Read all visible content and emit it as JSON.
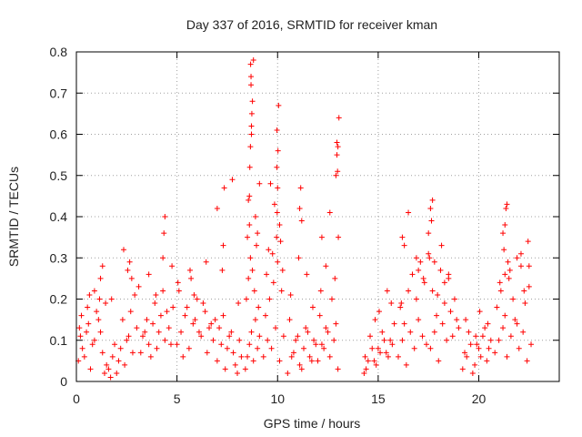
{
  "chart_data": {
    "type": "scatter",
    "title": "Day 337 of 2016, SRMTID for receiver kman",
    "xlabel": "GPS time / hours",
    "ylabel": "SRMTID / TECUs",
    "xlim": [
      0,
      24
    ],
    "ylim": [
      0,
      0.8
    ],
    "xticks": [
      0,
      5,
      10,
      15,
      20
    ],
    "xtick_labels": [
      "0",
      "5",
      "10",
      "15",
      "20"
    ],
    "yticks": [
      0,
      0.1,
      0.2,
      0.3,
      0.4,
      0.5,
      0.6,
      0.7,
      0.8
    ],
    "ytick_labels": [
      "0",
      "0.1",
      "0.2",
      "0.3",
      "0.4",
      "0.5",
      "0.6",
      "0.7",
      "0.8"
    ],
    "grid": true,
    "marker": "+",
    "marker_color": "#ff0000",
    "series": [
      {
        "name": "SRMTID",
        "x": [
          0.1,
          0.3,
          0.5,
          0.7,
          0.9,
          1.1,
          1.3,
          1.5,
          0.2,
          0.4,
          0.6,
          0.8,
          1.0,
          1.2,
          1.4,
          0.55,
          1.15,
          1.2,
          0.25,
          0.9,
          1.3,
          0.65,
          0.15,
          1.45,
          1.6,
          1.8,
          2.0,
          2.2,
          2.4,
          2.6,
          2.8,
          3.0,
          1.7,
          1.9,
          2.1,
          2.3,
          2.5,
          2.7,
          2.9,
          2.55,
          2.75,
          2.65,
          2.35,
          1.75,
          3.2,
          3.4,
          3.6,
          3.8,
          4.0,
          4.2,
          4.4,
          4.6,
          4.8,
          3.3,
          3.5,
          3.7,
          3.9,
          4.1,
          4.3,
          4.5,
          4.7,
          4.3,
          4.35,
          4.4,
          3.6,
          3.1,
          4.75,
          3.95,
          5.0,
          5.2,
          5.4,
          5.6,
          5.8,
          6.0,
          6.2,
          6.4,
          6.6,
          6.8,
          5.1,
          5.3,
          5.5,
          5.7,
          5.9,
          6.1,
          6.3,
          6.5,
          6.7,
          5.05,
          5.65,
          5.85,
          6.45,
          7.0,
          7.2,
          7.4,
          7.6,
          7.8,
          8.0,
          8.2,
          7.1,
          7.3,
          7.5,
          7.7,
          7.9,
          8.1,
          7.25,
          7.3,
          6.9,
          7.0,
          7.35,
          7.75,
          8.05,
          8.4,
          8.5,
          8.6,
          8.7,
          8.8,
          8.9,
          9.0,
          9.1,
          8.45,
          8.55,
          8.65,
          8.75,
          8.85,
          8.95,
          9.05,
          8.6,
          8.6,
          8.62,
          8.65,
          8.7,
          8.72,
          8.75,
          8.8,
          8.68,
          8.66,
          8.7,
          8.68,
          9.1,
          8.9,
          8.5,
          8.55,
          9.0,
          9.3,
          9.5,
          9.7,
          9.9,
          10.1,
          10.3,
          9.4,
          9.6,
          9.8,
          10.0,
          10.2,
          9.95,
          9.98,
          10.0,
          9.96,
          10.02,
          9.97,
          10.05,
          9.85,
          9.75,
          10.1,
          10.25,
          9.55,
          9.45,
          10.15,
          9.65,
          10.5,
          10.7,
          10.9,
          11.1,
          11.3,
          11.5,
          11.7,
          11.9,
          10.6,
          10.8,
          11.0,
          11.2,
          11.4,
          11.6,
          11.8,
          11.1,
          11.15,
          11.2,
          11.05,
          10.65,
          11.45,
          11.75,
          12.0,
          12.2,
          12.4,
          12.6,
          12.8,
          13.0,
          12.1,
          12.3,
          12.5,
          12.7,
          12.9,
          12.9,
          12.95,
          13.0,
          12.95,
          13.05,
          12.98,
          13.02,
          12.85,
          12.2,
          12.6,
          12.15,
          12.4,
          14.3,
          14.5,
          14.7,
          14.9,
          15.1,
          15.3,
          15.5,
          15.7,
          14.4,
          14.6,
          14.8,
          15.0,
          15.2,
          15.4,
          15.6,
          15.8,
          14.35,
          15.05,
          15.45,
          15.65,
          14.85,
          16.0,
          16.2,
          16.4,
          16.6,
          16.8,
          17.0,
          17.2,
          17.4,
          16.1,
          16.3,
          16.5,
          16.7,
          16.9,
          17.1,
          17.3,
          17.5,
          16.2,
          16.3,
          16.5,
          16.9,
          17.0,
          17.25,
          16.15,
          17.6,
          17.8,
          18.0,
          18.2,
          18.4,
          18.6,
          18.8,
          19.0,
          17.7,
          17.9,
          18.1,
          18.3,
          18.5,
          18.7,
          18.9,
          17.5,
          17.6,
          17.7,
          17.65,
          17.8,
          17.55,
          18.15,
          18.5,
          18.3,
          17.95,
          19.2,
          19.4,
          19.6,
          19.8,
          20.0,
          20.2,
          20.4,
          20.6,
          19.3,
          19.5,
          19.7,
          19.9,
          20.1,
          20.3,
          20.5,
          19.35,
          20.05,
          20.45,
          19.85,
          20.8,
          21.0,
          21.2,
          21.4,
          21.6,
          21.8,
          22.0,
          22.2,
          22.4,
          22.6,
          20.9,
          21.1,
          21.3,
          21.5,
          21.7,
          21.9,
          22.1,
          22.3,
          22.5,
          21.25,
          21.3,
          21.35,
          21.4,
          21.2,
          21.45,
          21.3,
          21.05,
          22.1,
          22.45,
          22.5,
          21.55,
          22.25,
          21.9
        ],
        "y": [
          0.05,
          0.08,
          0.12,
          0.03,
          0.1,
          0.15,
          0.07,
          0.04,
          0.11,
          0.06,
          0.14,
          0.09,
          0.17,
          0.12,
          0.02,
          0.18,
          0.2,
          0.25,
          0.16,
          0.22,
          0.28,
          0.21,
          0.13,
          0.19,
          0.03,
          0.06,
          0.02,
          0.08,
          0.04,
          0.11,
          0.07,
          0.13,
          0.01,
          0.09,
          0.05,
          0.15,
          0.1,
          0.17,
          0.21,
          0.27,
          0.25,
          0.29,
          0.32,
          0.2,
          0.07,
          0.12,
          0.09,
          0.14,
          0.08,
          0.16,
          0.1,
          0.13,
          0.18,
          0.11,
          0.15,
          0.06,
          0.19,
          0.12,
          0.22,
          0.17,
          0.09,
          0.3,
          0.36,
          0.4,
          0.26,
          0.23,
          0.28,
          0.21,
          0.09,
          0.12,
          0.16,
          0.08,
          0.14,
          0.2,
          0.11,
          0.17,
          0.13,
          0.1,
          0.22,
          0.06,
          0.18,
          0.25,
          0.15,
          0.12,
          0.19,
          0.07,
          0.14,
          0.24,
          0.27,
          0.21,
          0.29,
          0.05,
          0.09,
          0.03,
          0.11,
          0.07,
          0.02,
          0.06,
          0.13,
          0.16,
          0.08,
          0.12,
          0.04,
          0.1,
          0.27,
          0.33,
          0.15,
          0.42,
          0.47,
          0.49,
          0.19,
          0.03,
          0.06,
          0.09,
          0.12,
          0.05,
          0.15,
          0.08,
          0.11,
          0.2,
          0.25,
          0.3,
          0.27,
          0.22,
          0.33,
          0.18,
          0.38,
          0.45,
          0.52,
          0.57,
          0.6,
          0.65,
          0.68,
          0.78,
          0.74,
          0.77,
          0.62,
          0.72,
          0.48,
          0.4,
          0.35,
          0.44,
          0.36,
          0.06,
          0.1,
          0.08,
          0.13,
          0.05,
          0.11,
          0.16,
          0.2,
          0.24,
          0.29,
          0.22,
          0.35,
          0.41,
          0.47,
          0.52,
          0.56,
          0.61,
          0.67,
          0.43,
          0.31,
          0.38,
          0.27,
          0.32,
          0.26,
          0.34,
          0.48,
          0.02,
          0.06,
          0.1,
          0.04,
          0.08,
          0.12,
          0.05,
          0.09,
          0.15,
          0.07,
          0.11,
          0.03,
          0.13,
          0.06,
          0.1,
          0.42,
          0.47,
          0.39,
          0.3,
          0.21,
          0.26,
          0.18,
          0.05,
          0.09,
          0.13,
          0.06,
          0.1,
          0.03,
          0.16,
          0.08,
          0.12,
          0.2,
          0.14,
          0.5,
          0.55,
          0.57,
          0.58,
          0.64,
          0.51,
          0.35,
          0.25,
          0.35,
          0.41,
          0.22,
          0.28,
          0.02,
          0.05,
          0.08,
          0.04,
          0.07,
          0.1,
          0.06,
          0.09,
          0.03,
          0.11,
          0.05,
          0.08,
          0.12,
          0.07,
          0.1,
          0.14,
          0.06,
          0.17,
          0.22,
          0.19,
          0.15,
          0.06,
          0.1,
          0.04,
          0.12,
          0.08,
          0.15,
          0.11,
          0.09,
          0.18,
          0.14,
          0.22,
          0.26,
          0.2,
          0.29,
          0.24,
          0.31,
          0.35,
          0.33,
          0.41,
          0.3,
          0.27,
          0.25,
          0.19,
          0.08,
          0.12,
          0.05,
          0.14,
          0.1,
          0.17,
          0.2,
          0.13,
          0.22,
          0.16,
          0.27,
          0.19,
          0.25,
          0.11,
          0.15,
          0.36,
          0.42,
          0.44,
          0.39,
          0.29,
          0.3,
          0.33,
          0.26,
          0.24,
          0.21,
          0.03,
          0.06,
          0.09,
          0.04,
          0.08,
          0.11,
          0.05,
          0.1,
          0.07,
          0.12,
          0.02,
          0.09,
          0.06,
          0.13,
          0.08,
          0.15,
          0.17,
          0.14,
          0.11,
          0.07,
          0.1,
          0.13,
          0.06,
          0.11,
          0.15,
          0.08,
          0.12,
          0.05,
          0.09,
          0.18,
          0.22,
          0.16,
          0.25,
          0.2,
          0.14,
          0.28,
          0.19,
          0.23,
          0.32,
          0.38,
          0.42,
          0.43,
          0.36,
          0.29,
          0.26,
          0.24,
          0.31,
          0.34,
          0.28,
          0.27,
          0.22,
          0.3
        ]
      }
    ]
  }
}
